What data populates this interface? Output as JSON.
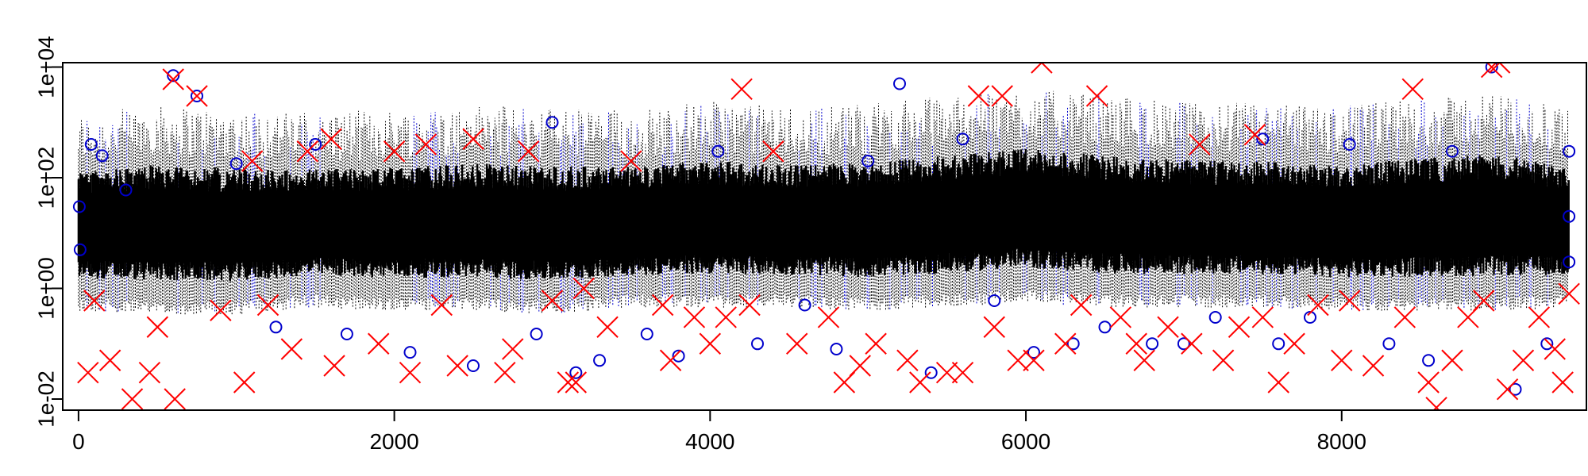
{
  "chart_data": {
    "type": "scatter",
    "title": "",
    "xlabel": "",
    "ylabel": "",
    "y_scale": "log10",
    "xlim": [
      -100,
      9550
    ],
    "ylim": [
      0.0063,
      12000
    ],
    "x_ticks": [
      0,
      2000,
      4000,
      6000,
      8000
    ],
    "x_tick_labels": [
      "0",
      "2000",
      "4000",
      "6000",
      "8000"
    ],
    "y_ticks": [
      0.01,
      1,
      100,
      10000
    ],
    "y_tick_labels": [
      "1e-02",
      "1e+00",
      "1e+02",
      "1e+04"
    ],
    "grid": false,
    "legend": "none",
    "series_count": 9440,
    "series": [
      {
        "style": "dotted black vertical ranges",
        "color": "#000000"
      },
      {
        "style": "open circles",
        "color": "#0000cc"
      },
      {
        "style": "crosses (X)",
        "color": "#ff0000"
      }
    ],
    "envelope": {
      "x": [
        0,
        500,
        1000,
        1500,
        2000,
        2500,
        3000,
        3500,
        4000,
        4500,
        5000,
        5500,
        6000,
        6500,
        7000,
        7500,
        8000,
        8500,
        9000,
        9440
      ],
      "lower": [
        0.7,
        0.6,
        0.6,
        0.8,
        0.7,
        0.7,
        0.6,
        0.8,
        0.8,
        0.8,
        0.7,
        0.8,
        1.0,
        0.8,
        0.8,
        0.8,
        0.7,
        0.7,
        0.7,
        0.8
      ],
      "upper": [
        400,
        600,
        500,
        450,
        500,
        600,
        550,
        500,
        700,
        550,
        650,
        900,
        1200,
        900,
        700,
        650,
        600,
        800,
        1000,
        500
      ]
    },
    "blue_circle_points": [
      [
        5,
        30
      ],
      [
        10,
        5
      ],
      [
        80,
        400
      ],
      [
        150,
        250
      ],
      [
        300,
        60
      ],
      [
        600,
        7000
      ],
      [
        750,
        3000
      ],
      [
        1000,
        180
      ],
      [
        1250,
        0.2
      ],
      [
        1500,
        400
      ],
      [
        1700,
        0.15
      ],
      [
        2100,
        0.07
      ],
      [
        2500,
        0.04
      ],
      [
        2900,
        0.15
      ],
      [
        3000,
        1000
      ],
      [
        3150,
        0.03
      ],
      [
        3300,
        0.05
      ],
      [
        3600,
        0.15
      ],
      [
        3800,
        0.06
      ],
      [
        4050,
        300
      ],
      [
        4300,
        0.1
      ],
      [
        4600,
        0.5
      ],
      [
        4800,
        0.08
      ],
      [
        5000,
        200
      ],
      [
        5200,
        5000
      ],
      [
        5400,
        0.03
      ],
      [
        5600,
        500
      ],
      [
        5800,
        0.6
      ],
      [
        6050,
        0.07
      ],
      [
        6300,
        0.1
      ],
      [
        6500,
        0.2
      ],
      [
        6800,
        0.1
      ],
      [
        7000,
        0.1
      ],
      [
        7200,
        0.3
      ],
      [
        7500,
        500
      ],
      [
        7600,
        0.1
      ],
      [
        7800,
        0.3
      ],
      [
        8050,
        400
      ],
      [
        8300,
        0.1
      ],
      [
        8550,
        0.05
      ],
      [
        8700,
        300
      ],
      [
        8950,
        10000
      ],
      [
        9100,
        0.015
      ],
      [
        9300,
        0.1
      ],
      [
        9440,
        300
      ],
      [
        9440,
        20
      ],
      [
        9440,
        3
      ]
    ],
    "red_cross_points": [
      [
        60,
        0.03
      ],
      [
        100,
        0.6
      ],
      [
        200,
        0.05
      ],
      [
        340,
        0.01
      ],
      [
        450,
        0.03
      ],
      [
        500,
        0.2
      ],
      [
        600,
        6000
      ],
      [
        610,
        0.01
      ],
      [
        750,
        3000
      ],
      [
        900,
        0.4
      ],
      [
        1050,
        0.02
      ],
      [
        1100,
        200
      ],
      [
        1200,
        0.5
      ],
      [
        1350,
        0.08
      ],
      [
        1450,
        300
      ],
      [
        1600,
        500
      ],
      [
        1620,
        0.04
      ],
      [
        1900,
        0.1
      ],
      [
        2000,
        300
      ],
      [
        2100,
        0.03
      ],
      [
        2200,
        400
      ],
      [
        2300,
        0.5
      ],
      [
        2400,
        0.04
      ],
      [
        2500,
        500
      ],
      [
        2700,
        0.03
      ],
      [
        2750,
        0.08
      ],
      [
        2850,
        300
      ],
      [
        3000,
        0.6
      ],
      [
        3100,
        0.02
      ],
      [
        3150,
        0.02
      ],
      [
        3200,
        1.0
      ],
      [
        3350,
        0.2
      ],
      [
        3500,
        200
      ],
      [
        3700,
        0.5
      ],
      [
        3750,
        0.05
      ],
      [
        3900,
        0.3
      ],
      [
        4000,
        0.1
      ],
      [
        4100,
        0.3
      ],
      [
        4200,
        4000
      ],
      [
        4250,
        0.5
      ],
      [
        4400,
        300
      ],
      [
        4550,
        0.1
      ],
      [
        4750,
        0.3
      ],
      [
        4850,
        0.02
      ],
      [
        4950,
        0.04
      ],
      [
        5050,
        0.1
      ],
      [
        5250,
        0.05
      ],
      [
        5330,
        0.02
      ],
      [
        5500,
        0.03
      ],
      [
        5600,
        0.03
      ],
      [
        5700,
        3000
      ],
      [
        5800,
        0.2
      ],
      [
        5850,
        3000
      ],
      [
        5950,
        0.05
      ],
      [
        6050,
        0.05
      ],
      [
        6100,
        12000
      ],
      [
        6250,
        0.1
      ],
      [
        6350,
        0.5
      ],
      [
        6450,
        3000
      ],
      [
        6600,
        0.3
      ],
      [
        6700,
        0.1
      ],
      [
        6750,
        0.05
      ],
      [
        6900,
        0.2
      ],
      [
        7050,
        0.1
      ],
      [
        7100,
        400
      ],
      [
        7250,
        0.05
      ],
      [
        7350,
        0.2
      ],
      [
        7450,
        600
      ],
      [
        7500,
        0.3
      ],
      [
        7600,
        0.02
      ],
      [
        7700,
        0.1
      ],
      [
        7850,
        0.5
      ],
      [
        8000,
        0.05
      ],
      [
        8050,
        0.6
      ],
      [
        8200,
        0.04
      ],
      [
        8400,
        0.3
      ],
      [
        8450,
        4000
      ],
      [
        8550,
        0.02
      ],
      [
        8600,
        0.007
      ],
      [
        8700,
        0.05
      ],
      [
        8800,
        0.3
      ],
      [
        8900,
        0.6
      ],
      [
        8950,
        10000
      ],
      [
        9000,
        12000
      ],
      [
        9050,
        0.015
      ],
      [
        9150,
        0.05
      ],
      [
        9250,
        0.3
      ],
      [
        9350,
        0.08
      ],
      [
        9400,
        0.02
      ],
      [
        9440,
        0.8
      ]
    ]
  }
}
